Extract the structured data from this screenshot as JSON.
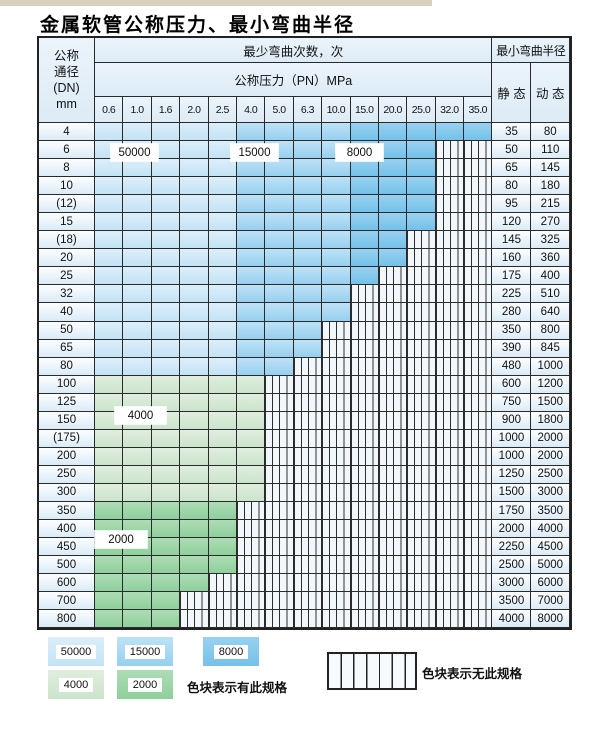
{
  "title": "金属软管公称压力、最小弯曲半径",
  "table": {
    "header": {
      "dn_lines": [
        "公称",
        "通径",
        "(DN)",
        "mm"
      ],
      "bend_cycles": "最少弯曲次数，次",
      "bend_radius": "最小弯曲半径",
      "pressure": "公称压力（PN）MPa",
      "static": "静 态",
      "dynamic": "动 态",
      "pressures": [
        "0.6",
        "1.0",
        "1.6",
        "2.0",
        "2.5",
        "4.0",
        "5.0",
        "6.3",
        "10.0",
        "15.0",
        "20.0",
        "25.0",
        "32.0",
        "35.0"
      ]
    },
    "column_zones": [
      "50000",
      "50000",
      "50000",
      "50000",
      "50000",
      "15000",
      "15000",
      "15000",
      "15000",
      "8000",
      "8000",
      "8000",
      "8000",
      "8000"
    ],
    "zone_labels": {
      "b50000": "50000",
      "b15000": "15000",
      "b8000": "8000",
      "g4000": "4000",
      "g2000": "2000"
    },
    "rows": [
      {
        "dn": "4",
        "zone": "blue",
        "colored": 14,
        "static": "35",
        "dynamic": "80"
      },
      {
        "dn": "6",
        "zone": "blue",
        "colored": 12,
        "static": "50",
        "dynamic": "110"
      },
      {
        "dn": "8",
        "zone": "blue",
        "colored": 12,
        "static": "65",
        "dynamic": "145"
      },
      {
        "dn": "10",
        "zone": "blue",
        "colored": 12,
        "static": "80",
        "dynamic": "180"
      },
      {
        "dn": "(12)",
        "zone": "blue",
        "colored": 12,
        "static": "95",
        "dynamic": "215"
      },
      {
        "dn": "15",
        "zone": "blue",
        "colored": 12,
        "static": "120",
        "dynamic": "270"
      },
      {
        "dn": "(18)",
        "zone": "blue",
        "colored": 11,
        "static": "145",
        "dynamic": "325"
      },
      {
        "dn": "20",
        "zone": "blue",
        "colored": 11,
        "static": "160",
        "dynamic": "360"
      },
      {
        "dn": "25",
        "zone": "blue",
        "colored": 10,
        "static": "175",
        "dynamic": "400"
      },
      {
        "dn": "32",
        "zone": "blue",
        "colored": 9,
        "static": "225",
        "dynamic": "510"
      },
      {
        "dn": "40",
        "zone": "blue",
        "colored": 9,
        "static": "280",
        "dynamic": "640"
      },
      {
        "dn": "50",
        "zone": "blue",
        "colored": 8,
        "static": "350",
        "dynamic": "800"
      },
      {
        "dn": "65",
        "zone": "blue",
        "colored": 8,
        "static": "390",
        "dynamic": "845"
      },
      {
        "dn": "80",
        "zone": "blue",
        "colored": 7,
        "static": "480",
        "dynamic": "1000"
      },
      {
        "dn": "100",
        "zone": "4000",
        "colored": 6,
        "static": "600",
        "dynamic": "1200"
      },
      {
        "dn": "125",
        "zone": "4000",
        "colored": 6,
        "static": "750",
        "dynamic": "1500"
      },
      {
        "dn": "150",
        "zone": "4000",
        "colored": 6,
        "static": "900",
        "dynamic": "1800"
      },
      {
        "dn": "(175)",
        "zone": "4000",
        "colored": 6,
        "static": "1000",
        "dynamic": "2000"
      },
      {
        "dn": "200",
        "zone": "4000",
        "colored": 6,
        "static": "1000",
        "dynamic": "2000"
      },
      {
        "dn": "250",
        "zone": "4000",
        "colored": 6,
        "static": "1250",
        "dynamic": "2500"
      },
      {
        "dn": "300",
        "zone": "4000",
        "colored": 6,
        "static": "1500",
        "dynamic": "3000"
      },
      {
        "dn": "350",
        "zone": "2000",
        "colored": 5,
        "static": "1750",
        "dynamic": "3500"
      },
      {
        "dn": "400",
        "zone": "2000",
        "colored": 5,
        "static": "2000",
        "dynamic": "4000"
      },
      {
        "dn": "450",
        "zone": "2000",
        "colored": 5,
        "static": "2250",
        "dynamic": "4500"
      },
      {
        "dn": "500",
        "zone": "2000",
        "colored": 5,
        "static": "2500",
        "dynamic": "5000"
      },
      {
        "dn": "600",
        "zone": "2000",
        "colored": 4,
        "static": "3000",
        "dynamic": "6000"
      },
      {
        "dn": "700",
        "zone": "2000",
        "colored": 3,
        "static": "3500",
        "dynamic": "7000"
      },
      {
        "dn": "800",
        "zone": "2000",
        "colored": 3,
        "static": "4000",
        "dynamic": "8000"
      }
    ]
  },
  "legend": {
    "items": [
      {
        "label": "50000"
      },
      {
        "label": "15000"
      },
      {
        "label": "8000"
      },
      {
        "label": "4000"
      },
      {
        "label": "2000"
      }
    ],
    "has_spec_text": "色块表示有此规格",
    "no_spec_text": "色块表示无此规格"
  },
  "colors": {
    "cycles_50000": "#c3e3f5",
    "cycles_15000": "#97cfef",
    "cycles_8000": "#75c1e9",
    "cycles_4000": "#cbe4cb",
    "cycles_2000": "#8ed09c",
    "header_bg": "#dcebf6",
    "grid_line": "#2a2a2a"
  }
}
